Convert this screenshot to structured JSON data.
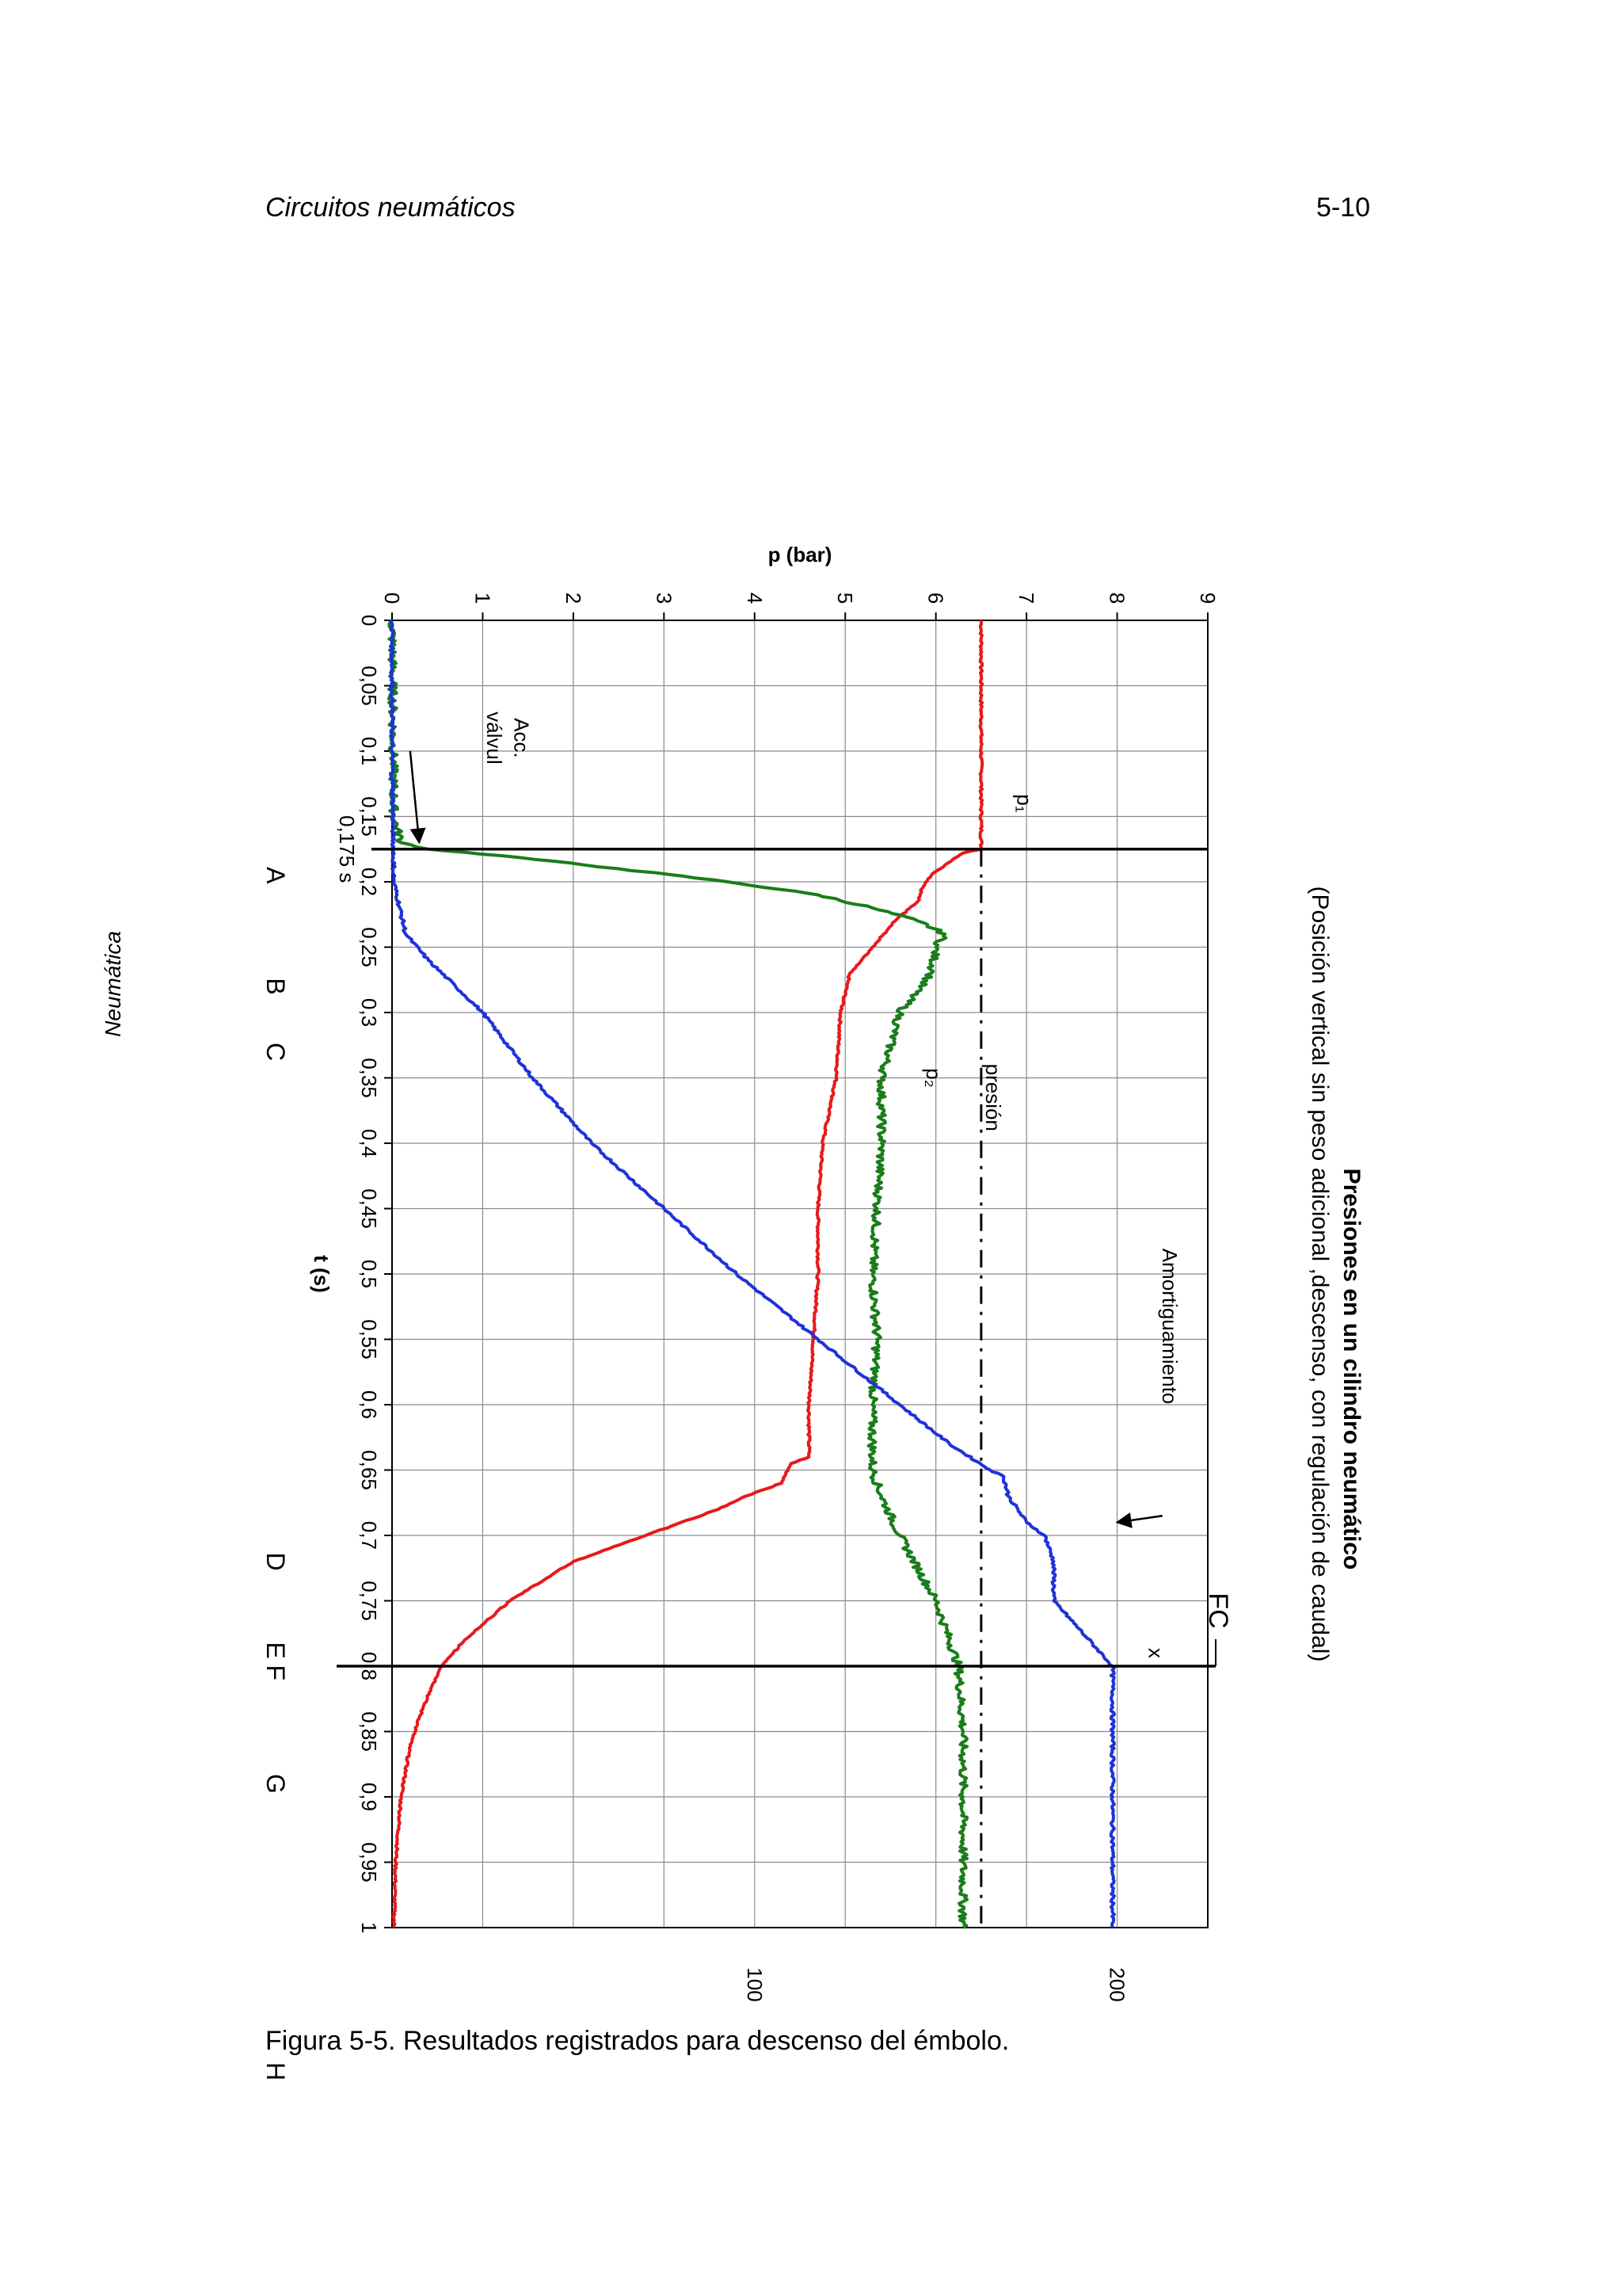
{
  "header": {
    "left": "Circuitos neumáticos",
    "right": "5-10"
  },
  "side_text": "Neumática",
  "caption": "Figura 5-5. Resultados registrados para descenso del émbolo.",
  "chart_data": {
    "type": "line",
    "title": "Presiones en un cilindro neumático",
    "subtitle": "(Posición vertical sin peso adicional ,descenso, con regulación de caudal)",
    "xlabel": "t (s)",
    "ylabel": "p (bar)",
    "xlim": [
      0,
      1
    ],
    "ylim": [
      0,
      9
    ],
    "grid": true,
    "x_ticks": [
      0,
      0.05,
      0.1,
      0.15,
      0.2,
      0.25,
      0.3,
      0.35,
      0.4,
      0.45,
      0.5,
      0.55,
      0.6,
      0.65,
      0.7,
      0.75,
      0.8,
      0.85,
      0.9,
      0.95,
      1
    ],
    "x_tick_labels": [
      "0",
      "0,05",
      "0,1",
      "0,15",
      "0,2",
      "0,25",
      "0,3",
      "0,35",
      "0,4",
      "0,45",
      "0,5",
      "0,55",
      "0,6",
      "0,65",
      "0,7",
      "0,75",
      "0,8",
      "0,85",
      "0,9",
      "0,95",
      "1"
    ],
    "y_ticks": [
      0,
      1,
      2,
      3,
      4,
      5,
      6,
      7,
      8,
      9
    ],
    "y_tick_labels": [
      "0",
      "1",
      "2",
      "3",
      "4",
      "5",
      "6",
      "7",
      "8",
      "9"
    ],
    "secondary_axis": {
      "ticks": [
        {
          "label": "200",
          "y": 8
        },
        {
          "label": "100",
          "y": 4
        }
      ]
    },
    "vertical_lines": [
      {
        "x": 0.175,
        "label": "0,175 s"
      },
      {
        "x": 0.8,
        "label": "FC"
      }
    ],
    "supply_pressure": {
      "label": "presión",
      "y": 6.5,
      "x_range": [
        0.175,
        1
      ],
      "color": "#000000"
    },
    "phase_labels": [
      {
        "label": "A",
        "x": 0.195
      },
      {
        "label": "B",
        "x": 0.28
      },
      {
        "label": "C",
        "x": 0.33
      },
      {
        "label": "D",
        "x": 0.72
      },
      {
        "label": "E",
        "x": 0.788
      },
      {
        "label": "F",
        "x": 0.805
      },
      {
        "label": "G",
        "x": 0.89
      },
      {
        "label": "H",
        "x": 1.11
      }
    ],
    "annotations": [
      {
        "text": "Amortiguamiento",
        "x": 0.54,
        "y": 8.5
      },
      {
        "text": "p₁",
        "x": 0.14,
        "y": 6.9
      },
      {
        "text": "p₂",
        "x": 0.35,
        "y": 5.9
      },
      {
        "text": "x",
        "x": 0.79,
        "y": 8.35
      },
      {
        "text": "Acc.",
        "x": 0.09,
        "y": 1.35
      },
      {
        "text": "válvul",
        "x": 0.09,
        "y": 1.05
      }
    ],
    "arrows": [
      {
        "from": [
          0.1,
          0.2
        ],
        "to": [
          0.17,
          0.3
        ]
      },
      {
        "from": [
          0.685,
          8.5
        ],
        "to": [
          0.69,
          8.0
        ]
      }
    ],
    "series": [
      {
        "name": "p₁",
        "color": "#e8191c",
        "x": [
          0,
          0.175,
          0.178,
          0.185,
          0.19,
          0.195,
          0.205,
          0.215,
          0.23,
          0.25,
          0.27,
          0.3,
          0.35,
          0.4,
          0.45,
          0.5,
          0.55,
          0.6,
          0.64,
          0.645,
          0.66,
          0.67,
          0.68,
          0.7,
          0.72,
          0.75,
          0.78,
          0.8,
          0.83,
          0.86,
          0.9,
          0.95,
          1
        ],
        "y": [
          6.5,
          6.5,
          6.3,
          6.15,
          6.05,
          5.95,
          5.85,
          5.8,
          5.55,
          5.3,
          5.05,
          4.95,
          4.9,
          4.75,
          4.7,
          4.7,
          4.65,
          4.6,
          4.6,
          4.4,
          4.3,
          3.9,
          3.6,
          2.8,
          2.0,
          1.3,
          0.8,
          0.55,
          0.35,
          0.2,
          0.1,
          0.04,
          0.02
        ]
      },
      {
        "name": "p₂",
        "color": "#1a7d1a",
        "x": [
          0,
          0.15,
          0.17,
          0.175,
          0.18,
          0.19,
          0.2,
          0.21,
          0.22,
          0.23,
          0.24,
          0.25,
          0.27,
          0.3,
          0.35,
          0.4,
          0.45,
          0.5,
          0.55,
          0.6,
          0.65,
          0.67,
          0.7,
          0.75,
          0.8,
          0.85,
          0.9,
          0.95,
          1
        ],
        "y": [
          0,
          0.02,
          0.1,
          0.4,
          1.2,
          2.5,
          3.7,
          4.7,
          5.3,
          5.8,
          6.1,
          6.0,
          5.95,
          5.6,
          5.4,
          5.4,
          5.35,
          5.3,
          5.35,
          5.3,
          5.3,
          5.4,
          5.6,
          6.0,
          6.25,
          6.3,
          6.3,
          6.3,
          6.3
        ]
      },
      {
        "name": "x",
        "color": "#1f33d6",
        "x": [
          0,
          0.1,
          0.2,
          0.24,
          0.26,
          0.28,
          0.3,
          0.35,
          0.4,
          0.45,
          0.5,
          0.55,
          0.6,
          0.63,
          0.65,
          0.655,
          0.67,
          0.69,
          0.7,
          0.72,
          0.75,
          0.8,
          0.85,
          0.9,
          0.95,
          1
        ],
        "y": [
          0,
          0,
          0.02,
          0.15,
          0.4,
          0.7,
          1.0,
          1.55,
          2.2,
          3.0,
          3.8,
          4.7,
          5.6,
          6.15,
          6.6,
          6.75,
          6.8,
          7.0,
          7.2,
          7.3,
          7.3,
          7.95,
          7.95,
          7.95,
          7.95,
          7.95
        ]
      }
    ]
  }
}
